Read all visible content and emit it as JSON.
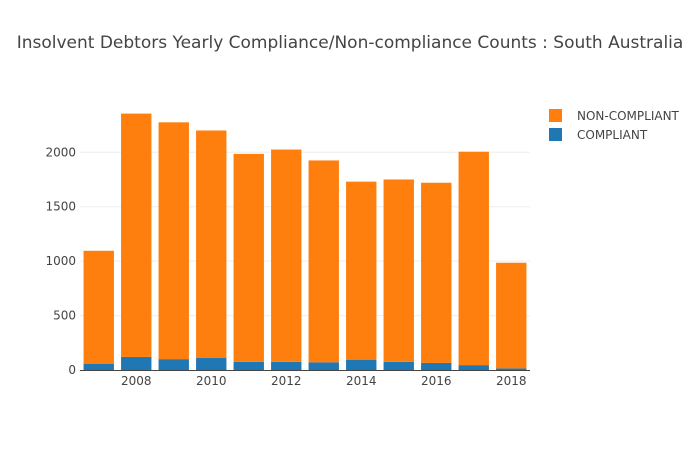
{
  "chart_data": {
    "type": "bar",
    "stacked": true,
    "title": "Insolvent Debtors Yearly Compliance/Non-compliance Counts : South Australia",
    "xlabel": "",
    "ylabel": "",
    "categories": [
      2007,
      2008,
      2009,
      2010,
      2011,
      2012,
      2013,
      2014,
      2015,
      2016,
      2017,
      2018
    ],
    "x_tick_labels": [
      "2008",
      "2010",
      "2012",
      "2014",
      "2016",
      "2018"
    ],
    "y_tick_labels": [
      "0",
      "500",
      "1000",
      "1500",
      "2000"
    ],
    "ylim": [
      0,
      2480
    ],
    "grid": true,
    "legend_position": "top-right",
    "series": [
      {
        "name": "COMPLIANT",
        "color": "#1f77b4",
        "values": [
          55,
          120,
          100,
          110,
          75,
          75,
          70,
          95,
          75,
          65,
          45,
          15
        ]
      },
      {
        "name": "NON-COMPLIANT",
        "color": "#ff7f0e",
        "values": [
          1040,
          2235,
          2175,
          2090,
          1910,
          1950,
          1855,
          1635,
          1675,
          1655,
          1960,
          970
        ]
      }
    ]
  }
}
